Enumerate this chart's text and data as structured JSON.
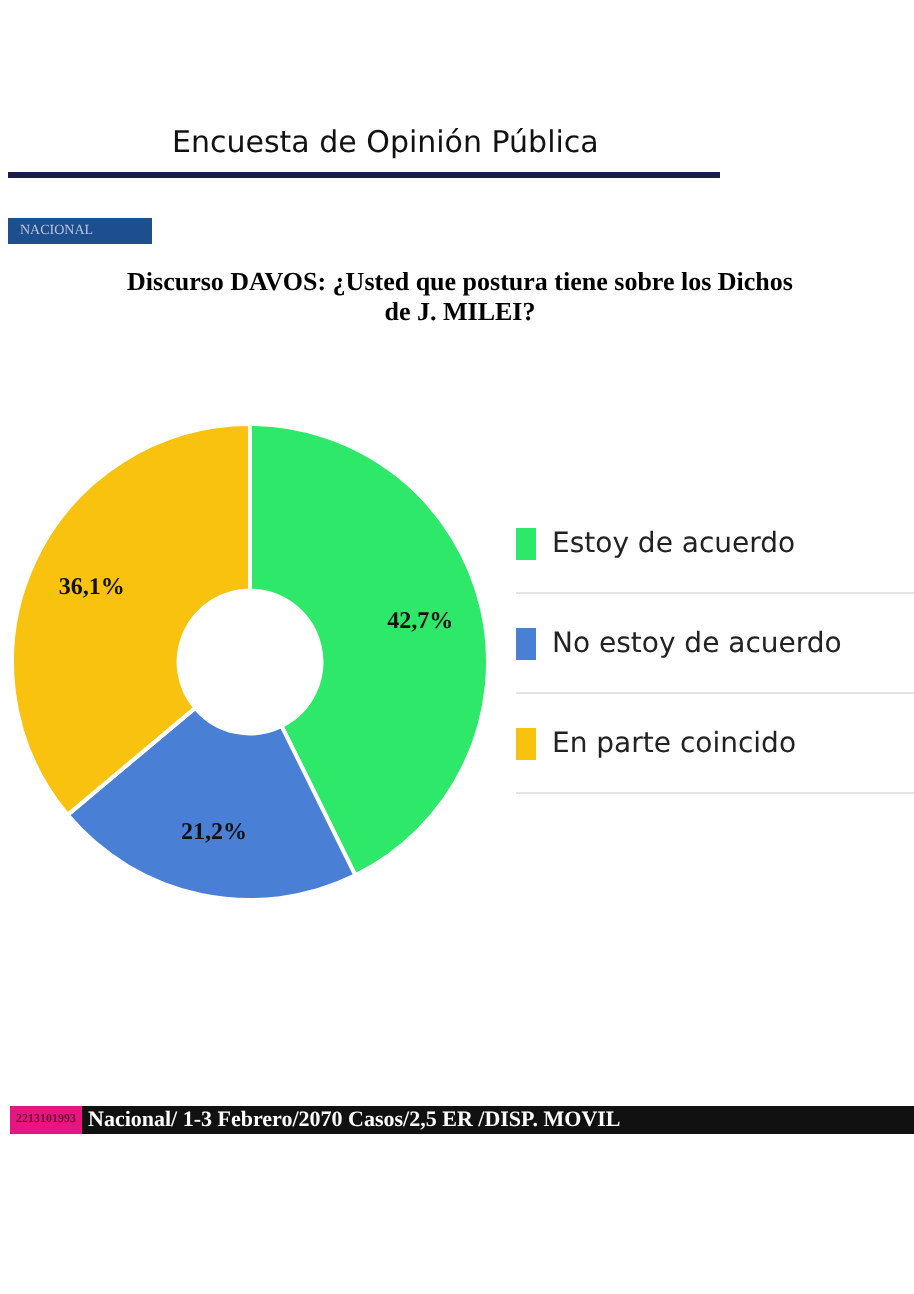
{
  "chart_data": {
    "type": "donut",
    "title": "Discurso DAVOS: ¿Usted que postura tiene sobre los Dichos de J. MILEI?",
    "subtitle": "Encuesta de Opinión Pública",
    "categories": [
      "Estoy de acuerdo",
      "No estoy de acuerdo",
      "En parte coincido"
    ],
    "values": [
      42.7,
      21.2,
      36.1
    ],
    "colors": [
      "#2ee86a",
      "#4a7fd6",
      "#f8c20f"
    ],
    "value_labels": [
      "42,7%",
      "21,2%",
      "36,1%"
    ],
    "legend": "right",
    "annotations": [
      "NACIONAL",
      "2213101993",
      "Nacional/ 1-3 Febrero/2070 Casos/2,5 ER /DISP. MOVIL"
    ]
  }
}
